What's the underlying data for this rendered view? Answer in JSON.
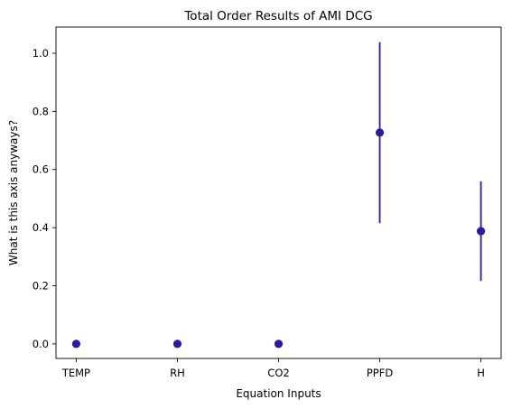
{
  "chart_data": {
    "type": "scatter",
    "title": "Total Order Results of AMI DCG",
    "xlabel": "Equation Inputs",
    "ylabel": "What is this axis anyways?",
    "categories": [
      "TEMP",
      "RH",
      "CO2",
      "PPFD",
      "H"
    ],
    "values": [
      0.0,
      0.0,
      0.0,
      0.727,
      0.388
    ],
    "error_low": [
      0.0,
      0.0,
      0.0,
      0.415,
      0.217
    ],
    "error_high": [
      0.0,
      0.0,
      0.0,
      1.038,
      0.559
    ],
    "ylim": [
      -0.05,
      1.09
    ],
    "yticks": [
      0.0,
      0.2,
      0.4,
      0.6,
      0.8,
      1.0
    ],
    "ytick_labels": [
      "0.0",
      "0.2",
      "0.4",
      "0.6",
      "0.8",
      "1.0"
    ],
    "grid": false,
    "marker_color": "#2a1b9a",
    "error_color": "#2a1b9a"
  }
}
